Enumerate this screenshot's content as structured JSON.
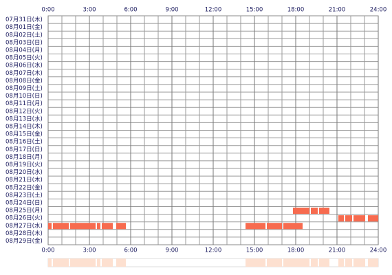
{
  "chart_data": {
    "type": "timeline",
    "categories": [
      "07月31日(木)",
      "08月01日(金)",
      "08月02日(土)",
      "08月03日(日)",
      "08月04日(月)",
      "08月05日(火)",
      "08月06日(水)",
      "08月07日(木)",
      "08月08日(金)",
      "08月09日(土)",
      "08月10日(日)",
      "08月11日(月)",
      "08月12日(火)",
      "08月13日(水)",
      "08月14日(木)",
      "08月15日(金)",
      "08月16日(土)",
      "08月17日(日)",
      "08月18日(月)",
      "08月19日(火)",
      "08月20日(水)",
      "08月21日(木)",
      "08月22日(金)",
      "08月23日(土)",
      "08月24日(日)",
      "08月25日(月)",
      "08月26日(火)",
      "08月27日(水)",
      "08月28日(木)",
      "08月29日(金)"
    ],
    "values": [
      [],
      [],
      [],
      [],
      [],
      [],
      [],
      [],
      [],
      [],
      [],
      [],
      [],
      [],
      [],
      [],
      [],
      [],
      [],
      [],
      [],
      [],
      [],
      [],
      [],
      [
        [
          17.8,
          19.0
        ],
        [
          19.1,
          19.6
        ],
        [
          19.7,
          20.45
        ]
      ],
      [
        [
          21.1,
          21.5
        ],
        [
          21.6,
          22.1
        ],
        [
          22.2,
          23.05
        ],
        [
          23.25,
          24
        ]
      ],
      [
        [
          0,
          0.25
        ],
        [
          0.35,
          1.5
        ],
        [
          1.6,
          3.45
        ],
        [
          3.55,
          3.8
        ],
        [
          3.9,
          4.7
        ],
        [
          4.95,
          5.65
        ],
        [
          14.35,
          15.8
        ],
        [
          15.9,
          17.0
        ],
        [
          17.1,
          18.5
        ]
      ],
      [],
      []
    ],
    "color": "#f76b4f",
    "summary_color": "#fde0d0",
    "xlim": [
      0,
      24
    ],
    "xticks": [
      {
        "value": 0,
        "label": "0:00"
      },
      {
        "value": 3,
        "label": "3:00"
      },
      {
        "value": 6,
        "label": "6:00"
      },
      {
        "value": 9,
        "label": "9:00"
      },
      {
        "value": 12,
        "label": "12:00"
      },
      {
        "value": 15,
        "label": "15:00"
      },
      {
        "value": 18,
        "label": "18:00"
      },
      {
        "value": 21,
        "label": "21:00"
      },
      {
        "value": 24,
        "label": "24:00"
      }
    ],
    "grid": true
  }
}
